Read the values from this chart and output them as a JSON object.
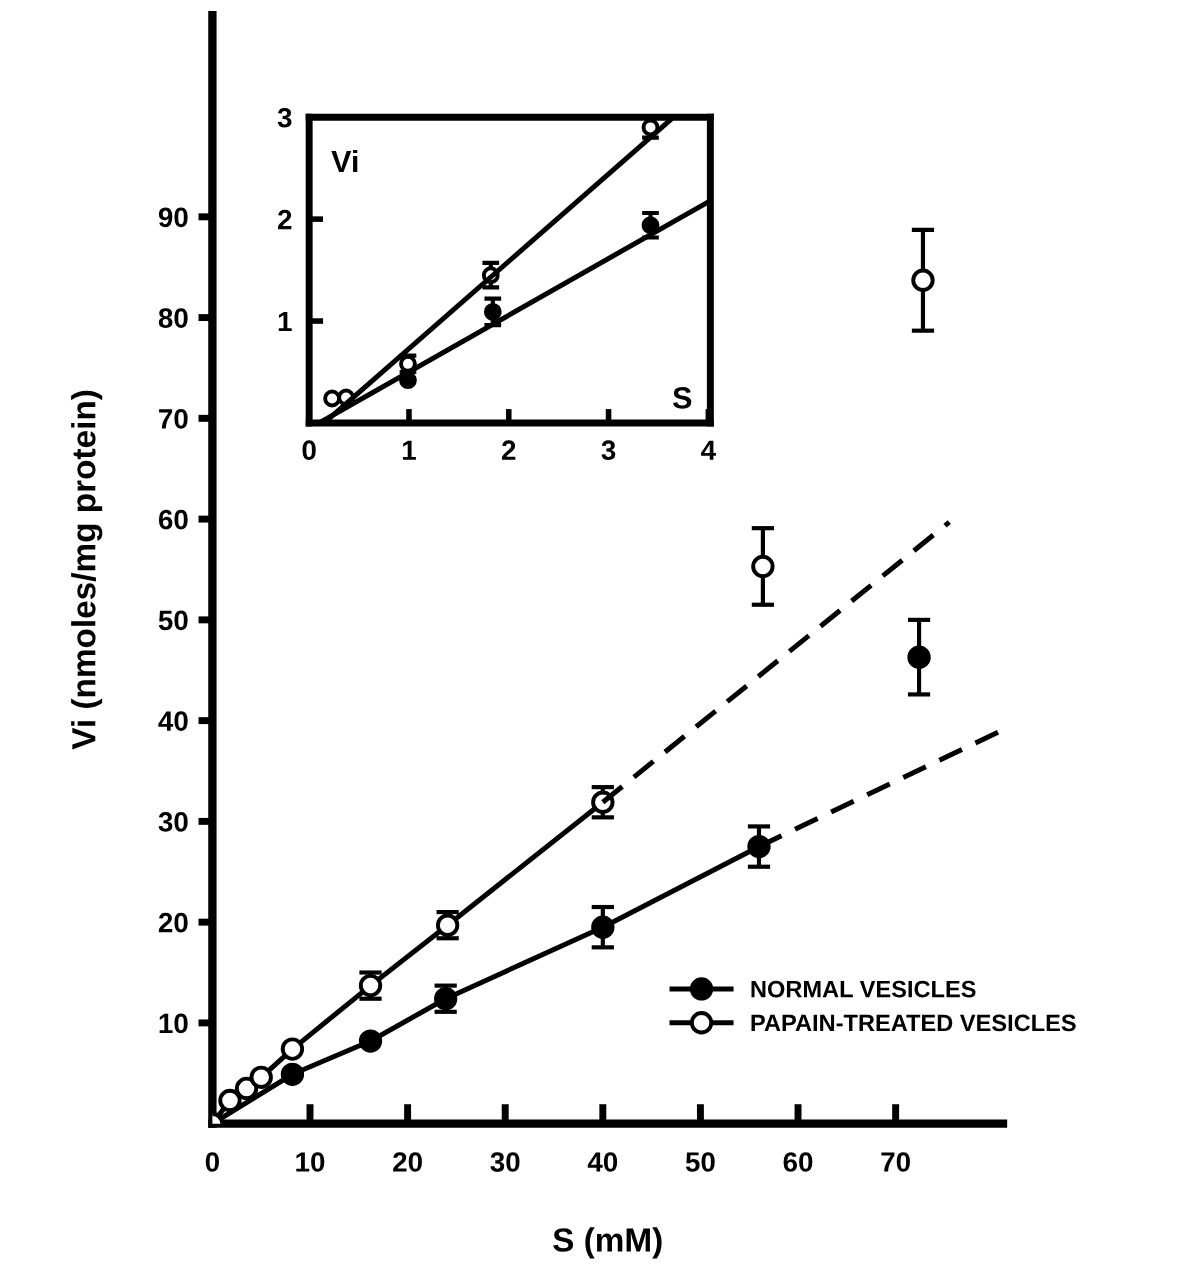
{
  "chart_data": [
    {
      "type": "line",
      "xlabel": "S (mM)",
      "ylabel": "Vi (nmoles/mg protein)",
      "xlim": [
        0,
        81
      ],
      "ylim": [
        0,
        110
      ],
      "xticks": [
        0,
        10,
        20,
        30,
        40,
        50,
        60,
        70
      ],
      "yticks": [
        10,
        20,
        30,
        40,
        50,
        60,
        70,
        80,
        90
      ],
      "legend": "bottom right",
      "grid": false,
      "series": [
        {
          "name": "NORMAL VESICLES",
          "color": "#000000",
          "marker": "circle",
          "x": [
            0,
            8.2,
            16.2,
            23.9,
            40,
            56
          ],
          "values": [
            0,
            4.9,
            8.2,
            12.4,
            19.5,
            27.5
          ],
          "errors": [
            null,
            null,
            null,
            1.3,
            2,
            2
          ]
        },
        {
          "name": "PAPAIN-TREATED VESICLES",
          "color": "#ffffff",
          "marker": "circle",
          "x": [
            0,
            1.8,
            3.5,
            5,
            8.2,
            16.2,
            24.1,
            40
          ],
          "values": [
            0,
            2.3,
            3.5,
            4.6,
            7.4,
            13.7,
            19.7,
            31.9
          ],
          "errors": [
            null,
            null,
            null,
            null,
            null,
            1.3,
            1.3,
            1.5
          ]
        },
        {
          "type": "scatter",
          "color": "#000000",
          "marker": "circle",
          "x": [
            72.4
          ],
          "values": [
            46.3
          ],
          "errors": [
            3.7
          ]
        },
        {
          "type": "scatter",
          "color": "#ffffff",
          "marker": "circle",
          "x": [
            56.4,
            72.8
          ],
          "values": [
            55.3,
            83.7
          ],
          "errors": [
            3.8,
            5
          ]
        },
        {
          "type": "line",
          "line_style": "dashed",
          "color": "#000000",
          "marker": "none",
          "x": [
            56,
            80.8
          ],
          "values": [
            27.5,
            39
          ]
        },
        {
          "type": "line",
          "line_style": "dashed",
          "color": "#000000",
          "marker": "none",
          "x": [
            40,
            75.5
          ],
          "values": [
            31.9,
            59.7
          ]
        }
      ]
    },
    {
      "type": "line",
      "xlabel": "S",
      "ylabel": "Vi",
      "xlim": [
        0,
        4.02
      ],
      "ylim": [
        0,
        3
      ],
      "xticks": [
        0,
        1,
        2,
        3,
        4
      ],
      "yticks": [
        1,
        2,
        3
      ],
      "grid": false,
      "legend": false,
      "series": [
        {
          "type": "scatter",
          "color": "#000000",
          "marker": "circle",
          "x": [
            0.99,
            1.84,
            3.42
          ],
          "values": [
            0.42,
            1.09,
            1.94
          ],
          "errors": [
            null,
            0.13,
            0.12
          ]
        },
        {
          "type": "scatter",
          "color": "#ffffff",
          "marker": "circle",
          "x": [
            0.23,
            0.37,
            0.99,
            1.82,
            3.42
          ],
          "values": [
            0.24,
            0.25,
            0.58,
            1.45,
            2.9
          ],
          "errors": [
            null,
            null,
            0.08,
            0.12,
            0.1
          ]
        },
        {
          "type": "line",
          "color": "#000000",
          "marker": "none",
          "x": [
            0.1,
            4.0
          ],
          "values": [
            0,
            2.17
          ]
        },
        {
          "type": "line",
          "color": "#000000",
          "marker": "none",
          "x": [
            0.15,
            3.65
          ],
          "values": [
            0,
            3.0
          ]
        }
      ]
    }
  ]
}
